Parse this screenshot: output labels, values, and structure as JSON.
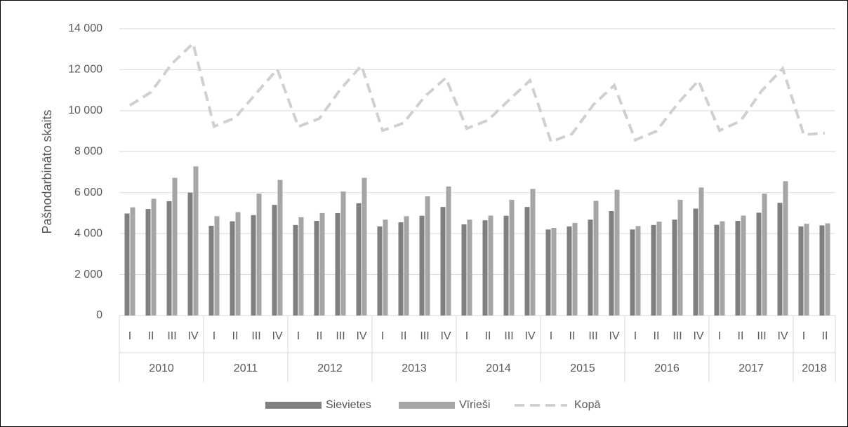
{
  "chart_data": {
    "type": "bar",
    "ylabel": "Pašnodarbināto skaits",
    "category_groups": [
      {
        "name": "2010",
        "categories": [
          "I",
          "II",
          "III",
          "IV"
        ]
      },
      {
        "name": "2011",
        "categories": [
          "I",
          "II",
          "III",
          "IV"
        ]
      },
      {
        "name": "2012",
        "categories": [
          "I",
          "II",
          "III",
          "IV"
        ]
      },
      {
        "name": "2013",
        "categories": [
          "I",
          "II",
          "III",
          "IV"
        ]
      },
      {
        "name": "2014",
        "categories": [
          "I",
          "II",
          "III",
          "IV"
        ]
      },
      {
        "name": "2015",
        "categories": [
          "I",
          "II",
          "III",
          "IV"
        ]
      },
      {
        "name": "2016",
        "categories": [
          "I",
          "II",
          "III",
          "IV"
        ]
      },
      {
        "name": "2017",
        "categories": [
          "I",
          "II",
          "III",
          "IV"
        ]
      },
      {
        "name": "2018",
        "categories": [
          "I",
          "II"
        ]
      }
    ],
    "series": [
      {
        "name": "Sievietes",
        "type": "bar",
        "color": "#7f7f7f",
        "values": [
          4980,
          5200,
          5580,
          6000,
          4380,
          4600,
          4900,
          5400,
          4420,
          4620,
          5000,
          5480,
          4350,
          4550,
          4870,
          5300,
          4450,
          4650,
          4870,
          5300,
          4200,
          4350,
          4680,
          5100,
          4200,
          4420,
          4680,
          5220,
          4430,
          4620,
          5020,
          5500,
          4350,
          4400
        ]
      },
      {
        "name": "Vīrieši",
        "type": "bar",
        "color": "#a6a6a6",
        "values": [
          5280,
          5700,
          6720,
          7280,
          4850,
          5050,
          5950,
          6620,
          4800,
          5000,
          6050,
          6720,
          4680,
          4850,
          5820,
          6300,
          4680,
          4880,
          5650,
          6180,
          4280,
          4520,
          5600,
          6140,
          4370,
          4580,
          5650,
          6250,
          4600,
          4880,
          5950,
          6560,
          4480,
          4500
        ]
      },
      {
        "name": "Kopā",
        "type": "line",
        "dashed": true,
        "color": "#d0d0d0",
        "values": [
          10260,
          10900,
          12300,
          13280,
          9230,
          9650,
          10850,
          12020,
          9220,
          9620,
          11050,
          12200,
          9030,
          9400,
          10690,
          11600,
          9130,
          9530,
          10520,
          11480,
          8480,
          8870,
          10280,
          11240,
          8570,
          9000,
          10330,
          11470,
          9030,
          9500,
          10970,
          12060,
          8830,
          8900
        ]
      }
    ],
    "ylim": [
      0,
      14000
    ],
    "yticks": [
      0,
      {
        "value": 2000,
        "label": "2 000"
      },
      {
        "value": 4000,
        "label": "4 000"
      },
      {
        "value": 6000,
        "label": "6 000"
      },
      {
        "value": 8000,
        "label": "8 000"
      },
      {
        "value": 10000,
        "label": "10 000"
      },
      {
        "value": 12000,
        "label": "12 000"
      },
      {
        "value": 14000,
        "label": "14 000"
      }
    ],
    "grid": true,
    "legend": "bottom"
  }
}
